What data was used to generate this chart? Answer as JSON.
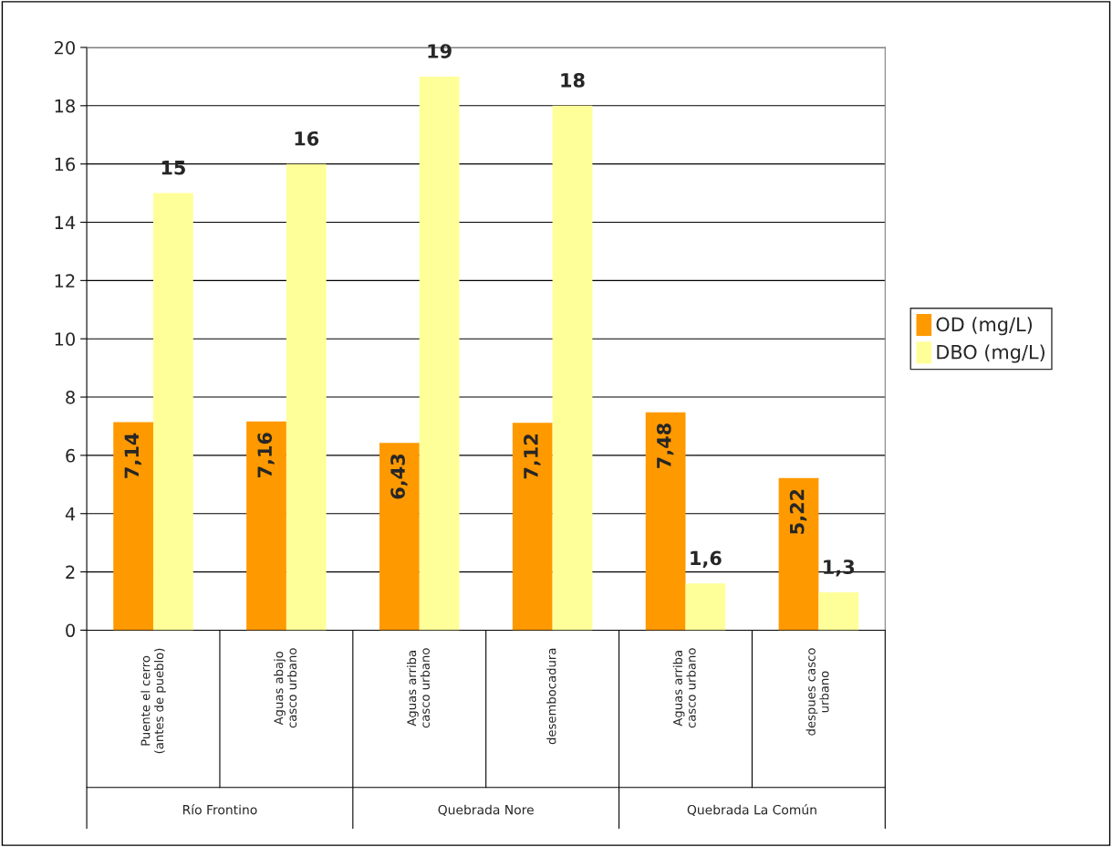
{
  "chart_data": {
    "type": "bar",
    "categories": [
      "Puente el cerro\n(antes de pueblo)",
      "Aguas abajo\ncasco urbano",
      "Aguas arriba\ncasco urbano",
      "desembocadura",
      "Aguas arriba\ncasco urbano",
      "despues casco\nurbano"
    ],
    "series": [
      {
        "name": "OD (mg/L)",
        "color": "#ff9900",
        "values": [
          7.14,
          7.16,
          6.43,
          7.12,
          7.48,
          5.22
        ],
        "value_labels": [
          "7,14",
          "7,16",
          "6,43",
          "7,12",
          "7,48",
          "5,22"
        ]
      },
      {
        "name": "DBO (mg/L)",
        "color": "#ffff99",
        "values": [
          15,
          16,
          19,
          18,
          1.6,
          1.3
        ],
        "value_labels": [
          "15",
          "16",
          "19",
          "18",
          "1,6",
          "1,3"
        ]
      }
    ],
    "annotations": [
      "Río Frontino",
      "Quebrada Nore",
      "Quebrada La Común"
    ],
    "ylim": [
      0,
      20
    ],
    "yticks": [
      0,
      2,
      4,
      6,
      8,
      10,
      12,
      14,
      16,
      18,
      20
    ],
    "grid": "y",
    "legend": "right"
  }
}
